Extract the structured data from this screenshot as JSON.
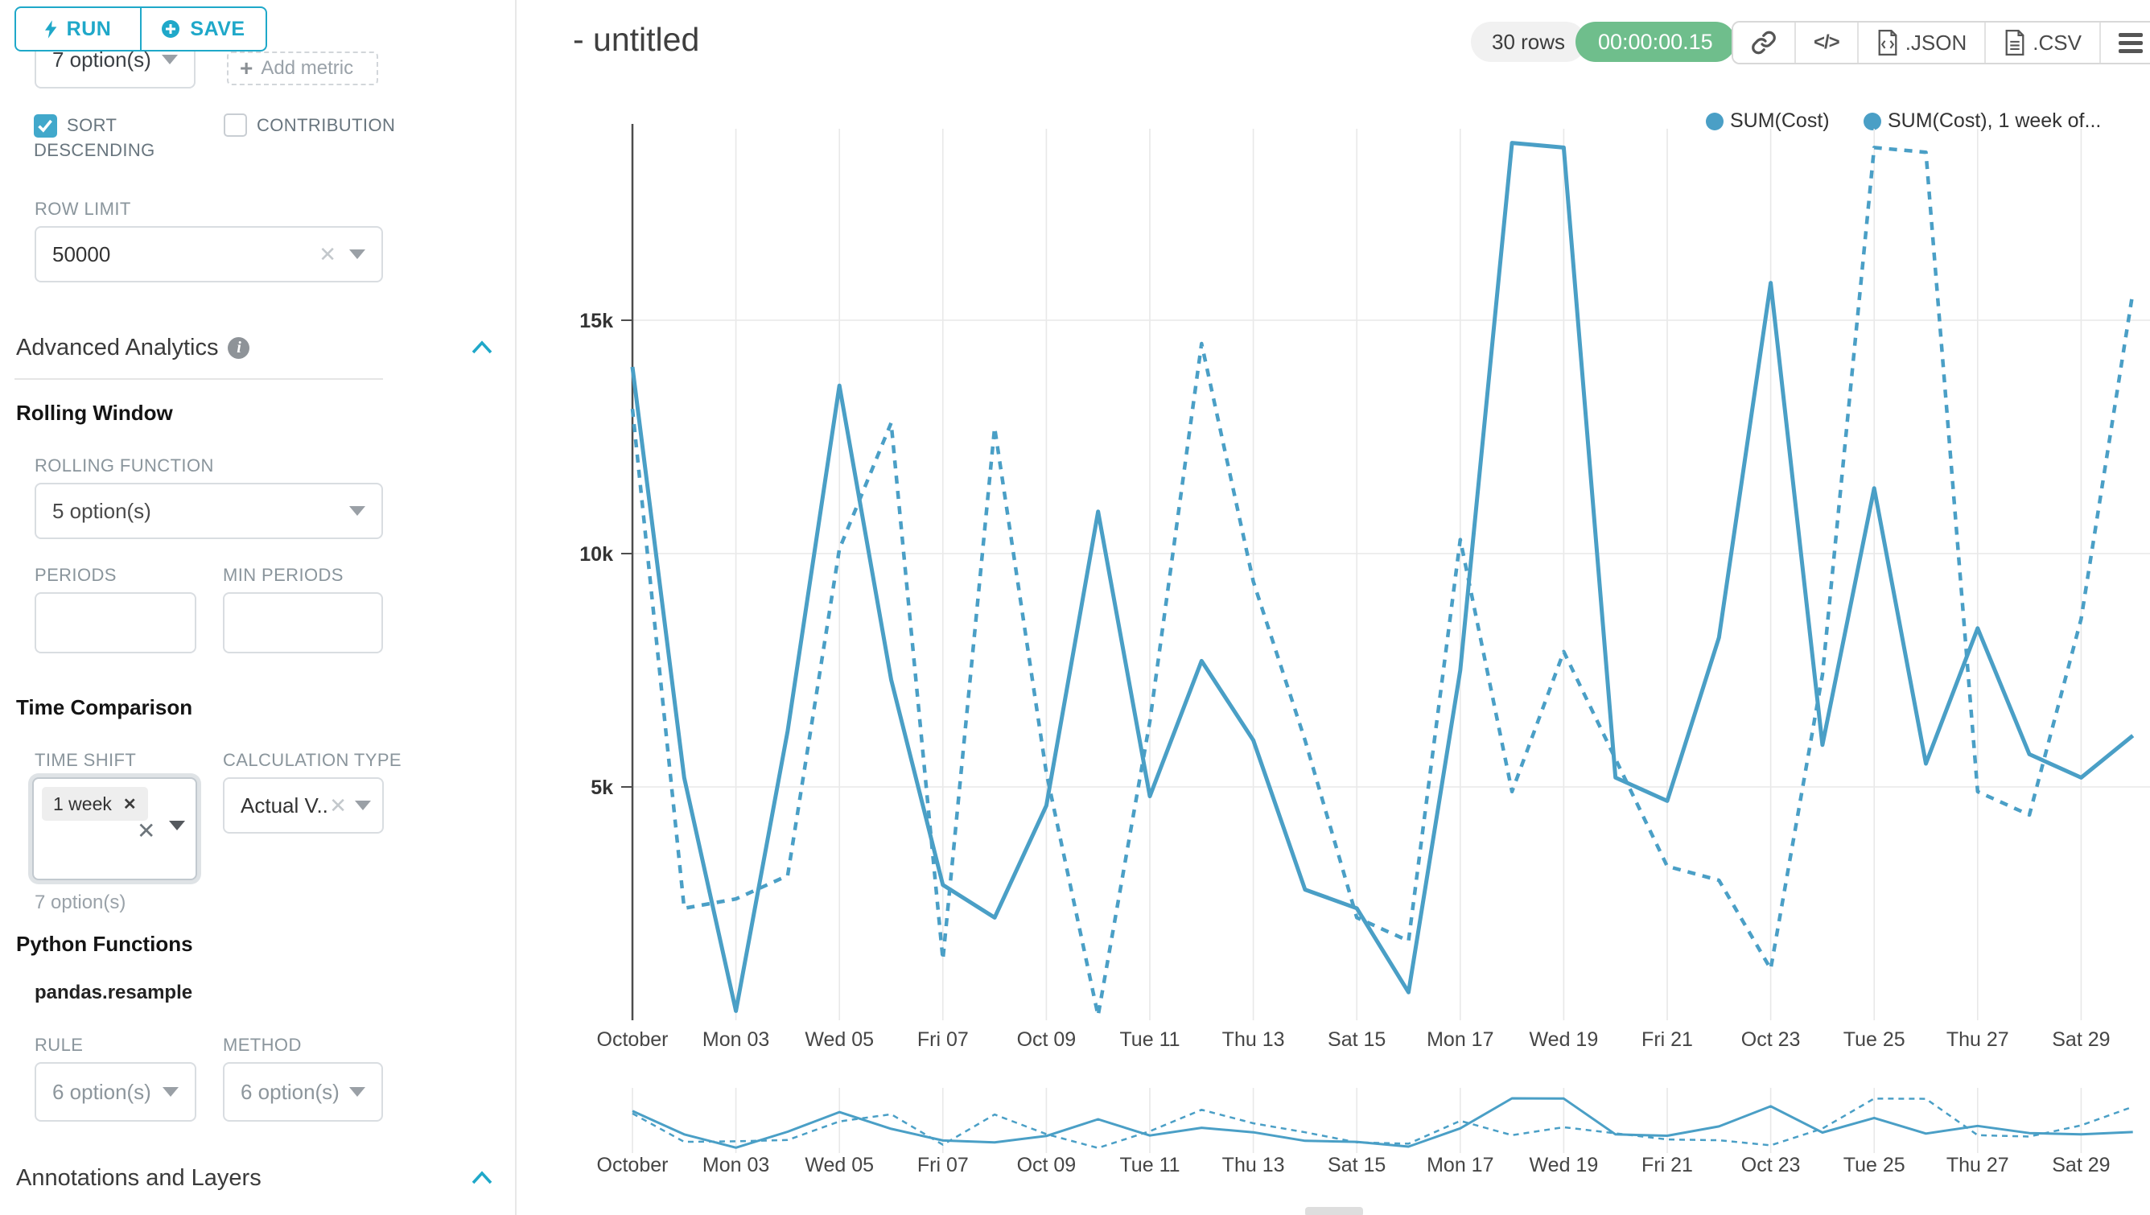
{
  "panel": {
    "run_label": "RUN",
    "save_label": "SAVE",
    "top_select_value": "7 option(s)",
    "add_metric_label": "Add metric",
    "sort_descending_label": "SORT DESCENDING",
    "contribution_label": "CONTRIBUTION",
    "row_limit_label": "ROW LIMIT",
    "row_limit_value": "50000",
    "advanced_analytics_title": "Advanced Analytics",
    "rolling_window_title": "Rolling Window",
    "rolling_function_label": "ROLLING FUNCTION",
    "rolling_function_value": "5 option(s)",
    "periods_label": "PERIODS",
    "min_periods_label": "MIN PERIODS",
    "time_comparison_title": "Time Comparison",
    "time_shift_label": "TIME SHIFT",
    "time_shift_tag": "1 week",
    "time_shift_hint": "7 option(s)",
    "calculation_type_label": "CALCULATION TYPE",
    "calculation_type_value": "Actual V...",
    "python_functions_title": "Python Functions",
    "python_function_name": "pandas.resample",
    "rule_label": "RULE",
    "rule_value": "6 option(s)",
    "method_label": "METHOD",
    "method_value": "6 option(s)",
    "annotations_title": "Annotations and Layers"
  },
  "header": {
    "title": "- untitled",
    "rows_badge": "30 rows",
    "timer": "00:00:00.15",
    "export_json_label": ".JSON",
    "export_csv_label": ".CSV"
  },
  "chart_data": {
    "type": "line",
    "title": "- untitled",
    "x": [
      "Oct 01",
      "Oct 02",
      "Oct 03",
      "Oct 04",
      "Oct 05",
      "Oct 06",
      "Oct 07",
      "Oct 08",
      "Oct 09",
      "Oct 10",
      "Oct 11",
      "Oct 12",
      "Oct 13",
      "Oct 14",
      "Oct 15",
      "Oct 16",
      "Oct 17",
      "Oct 18",
      "Oct 19",
      "Oct 20",
      "Oct 21",
      "Oct 22",
      "Oct 23",
      "Oct 24",
      "Oct 25",
      "Oct 26",
      "Oct 27",
      "Oct 28",
      "Oct 29",
      "Oct 30"
    ],
    "x_tick_labels": [
      "October",
      "Mon 03",
      "Wed 05",
      "Fri 07",
      "Oct 09",
      "Tue 11",
      "Thu 13",
      "Sat 15",
      "Mon 17",
      "Wed 19",
      "Fri 21",
      "Oct 23",
      "Tue 25",
      "Thu 27",
      "Sat 29"
    ],
    "y_tick_labels": [
      "5k",
      "10k",
      "15k"
    ],
    "ylim": [
      0,
      19500
    ],
    "grid": true,
    "legend_position": "top-right",
    "line_color": "#4a9fc6",
    "series": [
      {
        "name": "SUM(Cost)",
        "style": "solid",
        "values": [
          14000,
          5200,
          200,
          6200,
          13600,
          7300,
          2900,
          2200,
          4600,
          10900,
          4800,
          7700,
          6000,
          2800,
          2400,
          600,
          7500,
          18800,
          18700,
          5200,
          4700,
          8200,
          15800,
          5900,
          11400,
          5500,
          8400,
          5700,
          5200,
          6100
        ]
      },
      {
        "name": "SUM(Cost), 1 week of...",
        "style": "dashed",
        "values": [
          13100,
          2400,
          2600,
          3100,
          10100,
          12800,
          1300,
          12700,
          5300,
          100,
          6400,
          14500,
          9400,
          6000,
          2200,
          1700,
          10300,
          4900,
          7900,
          5600,
          3300,
          3000,
          1100,
          7400,
          18700,
          18600,
          4900,
          4400,
          8600,
          15600
        ]
      }
    ],
    "has_mini_preview": true
  }
}
